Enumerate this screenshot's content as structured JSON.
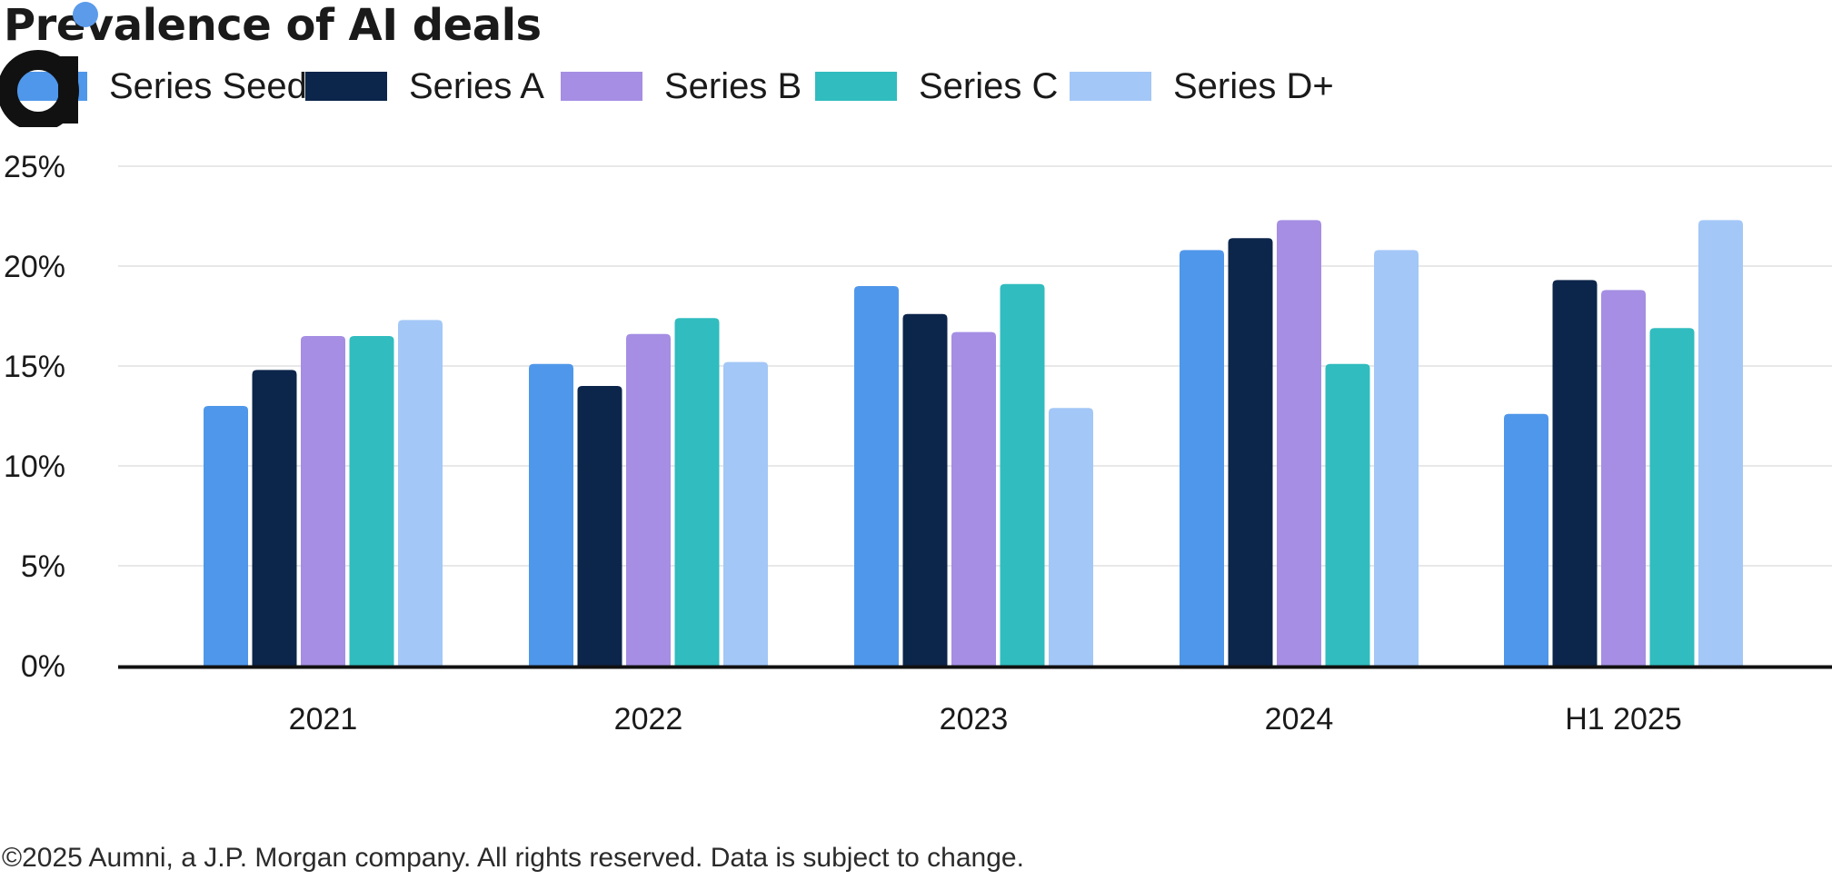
{
  "chart_data": {
    "type": "bar",
    "title": "Prevalence of AI deals",
    "categories": [
      "2021",
      "2022",
      "2023",
      "2024",
      "H1 2025"
    ],
    "series": [
      {
        "name": "Series Seed",
        "color": "#4f97ea",
        "values": [
          13.0,
          15.1,
          19.0,
          20.8,
          12.6
        ]
      },
      {
        "name": "Series A",
        "color": "#0c254a",
        "values": [
          14.8,
          14.0,
          17.6,
          21.4,
          19.3
        ]
      },
      {
        "name": "Series B",
        "color": "#a58ee3",
        "values": [
          16.5,
          16.6,
          16.7,
          22.3,
          18.8
        ]
      },
      {
        "name": "Series C",
        "color": "#31bcbf",
        "values": [
          16.5,
          17.4,
          19.1,
          15.1,
          16.9
        ]
      },
      {
        "name": "Series D+",
        "color": "#a3c7f7",
        "values": [
          17.3,
          15.2,
          12.9,
          20.8,
          22.3
        ]
      }
    ],
    "yticks": [
      "0%",
      "5%",
      "10%",
      "15%",
      "20%",
      "25%"
    ],
    "ylim": [
      0,
      25
    ],
    "xlabel": "",
    "ylabel": "",
    "grid": true,
    "legend": "top-left"
  },
  "footer": "©2025 Aumni, a J.P. Morgan company. All rights reserved. Data is subject to change.",
  "logo": {
    "text": "a",
    "dot_color": "#5b9bea",
    "color": "#111111"
  }
}
